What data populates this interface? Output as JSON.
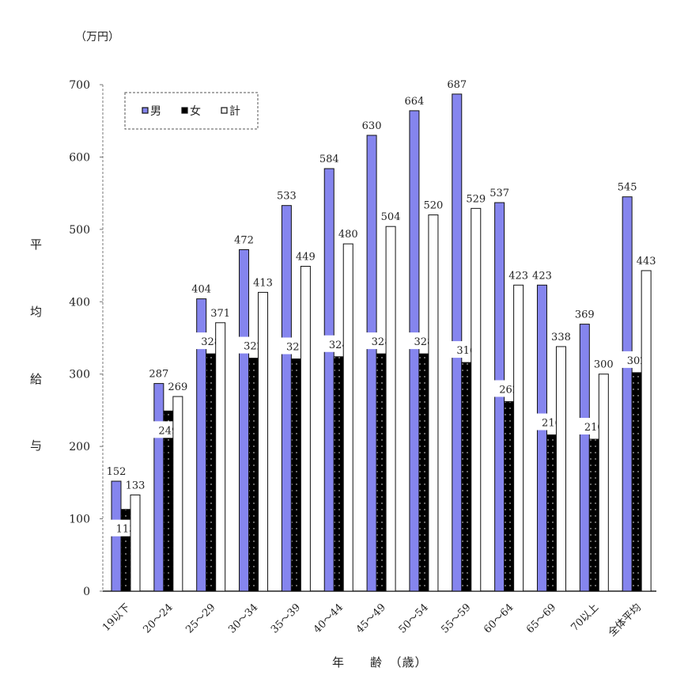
{
  "chart_data": {
    "type": "bar",
    "unit_label": "（万円）",
    "ylabel_chars": [
      "平",
      "均",
      "給",
      "与"
    ],
    "xlabel": "年　　齢　（歳）",
    "ylim": [
      0,
      700
    ],
    "yticks": [
      0,
      100,
      200,
      300,
      400,
      500,
      600,
      700
    ],
    "grid": false,
    "legend_position": "top-left",
    "categories": [
      "19以下",
      "20～24",
      "25～29",
      "30～34",
      "35～39",
      "40～44",
      "45～49",
      "50～54",
      "55～59",
      "60～64",
      "65～69",
      "70以上",
      "全体平均"
    ],
    "series": [
      {
        "name": "男",
        "color": "#8585ee",
        "values": [
          152,
          287,
          404,
          472,
          533,
          584,
          630,
          664,
          687,
          537,
          423,
          369,
          545
        ]
      },
      {
        "name": "女",
        "color": "#000000",
        "values": [
          113,
          249,
          328,
          322,
          321,
          324,
          328,
          328,
          316,
          262,
          216,
          210,
          302
        ]
      },
      {
        "name": "計",
        "color": "#ffffff",
        "values": [
          133,
          269,
          371,
          413,
          449,
          480,
          504,
          520,
          529,
          423,
          338,
          300,
          443
        ]
      }
    ]
  }
}
